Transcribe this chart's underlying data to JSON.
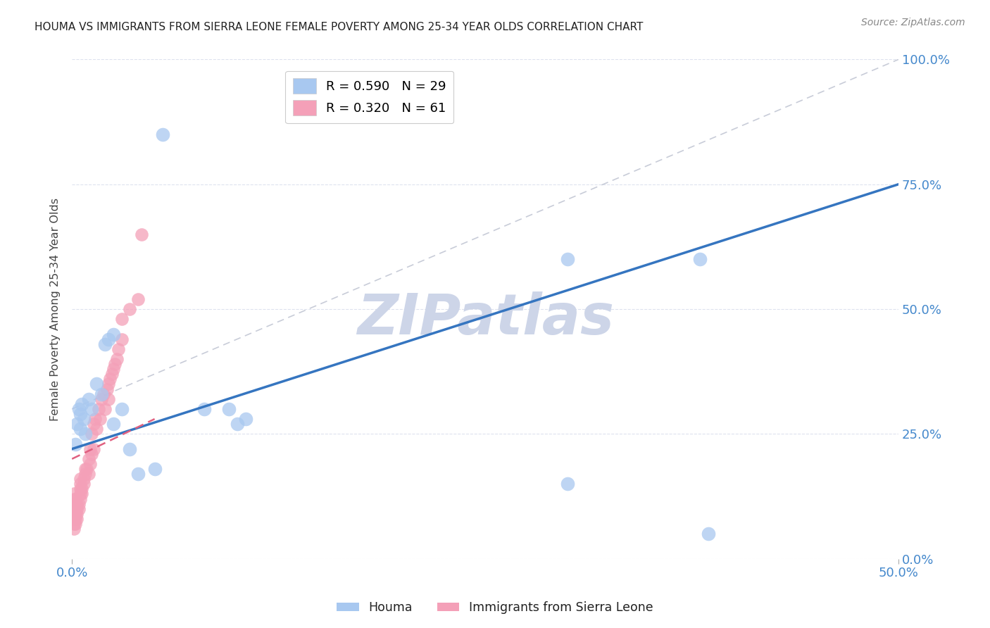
{
  "title": "HOUMA VS IMMIGRANTS FROM SIERRA LEONE FEMALE POVERTY AMONG 25-34 YEAR OLDS CORRELATION CHART",
  "source": "Source: ZipAtlas.com",
  "ylabel": "Female Poverty Among 25-34 Year Olds",
  "xlim": [
    0.0,
    0.5
  ],
  "ylim": [
    0.0,
    1.0
  ],
  "xticks": [
    0.0,
    0.5
  ],
  "yticks": [
    0.0,
    0.25,
    0.5,
    0.75,
    1.0
  ],
  "houma_R": 0.59,
  "houma_N": 29,
  "sierra_leone_R": 0.32,
  "sierra_leone_N": 61,
  "blue_color": "#a8c8f0",
  "pink_color": "#f4a0b8",
  "blue_line_color": "#3575c0",
  "pink_line_color": "#e06080",
  "gray_line_color": "#c8ccd8",
  "grid_color": "#dde2ee",
  "title_color": "#222222",
  "axis_label_color": "#444444",
  "tick_color": "#4488cc",
  "source_color": "#888888",
  "watermark_color": "#cdd5e8",
  "blue_line_y0": 0.22,
  "blue_line_y1": 0.75,
  "gray_line_x0": 0.0,
  "gray_line_y0": 0.3,
  "gray_line_x1": 0.5,
  "gray_line_y1": 1.0,
  "houma_x": [
    0.002,
    0.003,
    0.004,
    0.005,
    0.005,
    0.006,
    0.007,
    0.008,
    0.01,
    0.012,
    0.015,
    0.018,
    0.02,
    0.022,
    0.025,
    0.03,
    0.035,
    0.04,
    0.05,
    0.055,
    0.08,
    0.095,
    0.1,
    0.105,
    0.025,
    0.3,
    0.38,
    0.3,
    0.385
  ],
  "houma_y": [
    0.23,
    0.27,
    0.3,
    0.26,
    0.29,
    0.31,
    0.28,
    0.25,
    0.32,
    0.3,
    0.35,
    0.33,
    0.43,
    0.44,
    0.27,
    0.3,
    0.22,
    0.17,
    0.18,
    0.85,
    0.3,
    0.3,
    0.27,
    0.28,
    0.45,
    0.6,
    0.6,
    0.15,
    0.05
  ],
  "sierra_x": [
    0.001,
    0.001,
    0.001,
    0.001,
    0.001,
    0.001,
    0.001,
    0.001,
    0.002,
    0.002,
    0.002,
    0.002,
    0.002,
    0.002,
    0.003,
    0.003,
    0.003,
    0.003,
    0.004,
    0.004,
    0.005,
    0.005,
    0.005,
    0.005,
    0.005,
    0.006,
    0.006,
    0.007,
    0.007,
    0.008,
    0.008,
    0.009,
    0.01,
    0.01,
    0.011,
    0.011,
    0.012,
    0.012,
    0.013,
    0.013,
    0.014,
    0.015,
    0.016,
    0.017,
    0.018,
    0.019,
    0.02,
    0.021,
    0.022,
    0.022,
    0.023,
    0.024,
    0.025,
    0.026,
    0.027,
    0.028,
    0.03,
    0.03,
    0.035,
    0.04,
    0.042
  ],
  "sierra_y": [
    0.06,
    0.07,
    0.08,
    0.09,
    0.1,
    0.11,
    0.12,
    0.13,
    0.07,
    0.08,
    0.09,
    0.1,
    0.11,
    0.12,
    0.08,
    0.09,
    0.1,
    0.11,
    0.1,
    0.11,
    0.12,
    0.13,
    0.14,
    0.15,
    0.16,
    0.13,
    0.14,
    0.15,
    0.16,
    0.17,
    0.18,
    0.18,
    0.17,
    0.2,
    0.19,
    0.22,
    0.21,
    0.25,
    0.22,
    0.27,
    0.28,
    0.26,
    0.3,
    0.28,
    0.32,
    0.33,
    0.3,
    0.34,
    0.32,
    0.35,
    0.36,
    0.37,
    0.38,
    0.39,
    0.4,
    0.42,
    0.44,
    0.48,
    0.5,
    0.52,
    0.65
  ]
}
